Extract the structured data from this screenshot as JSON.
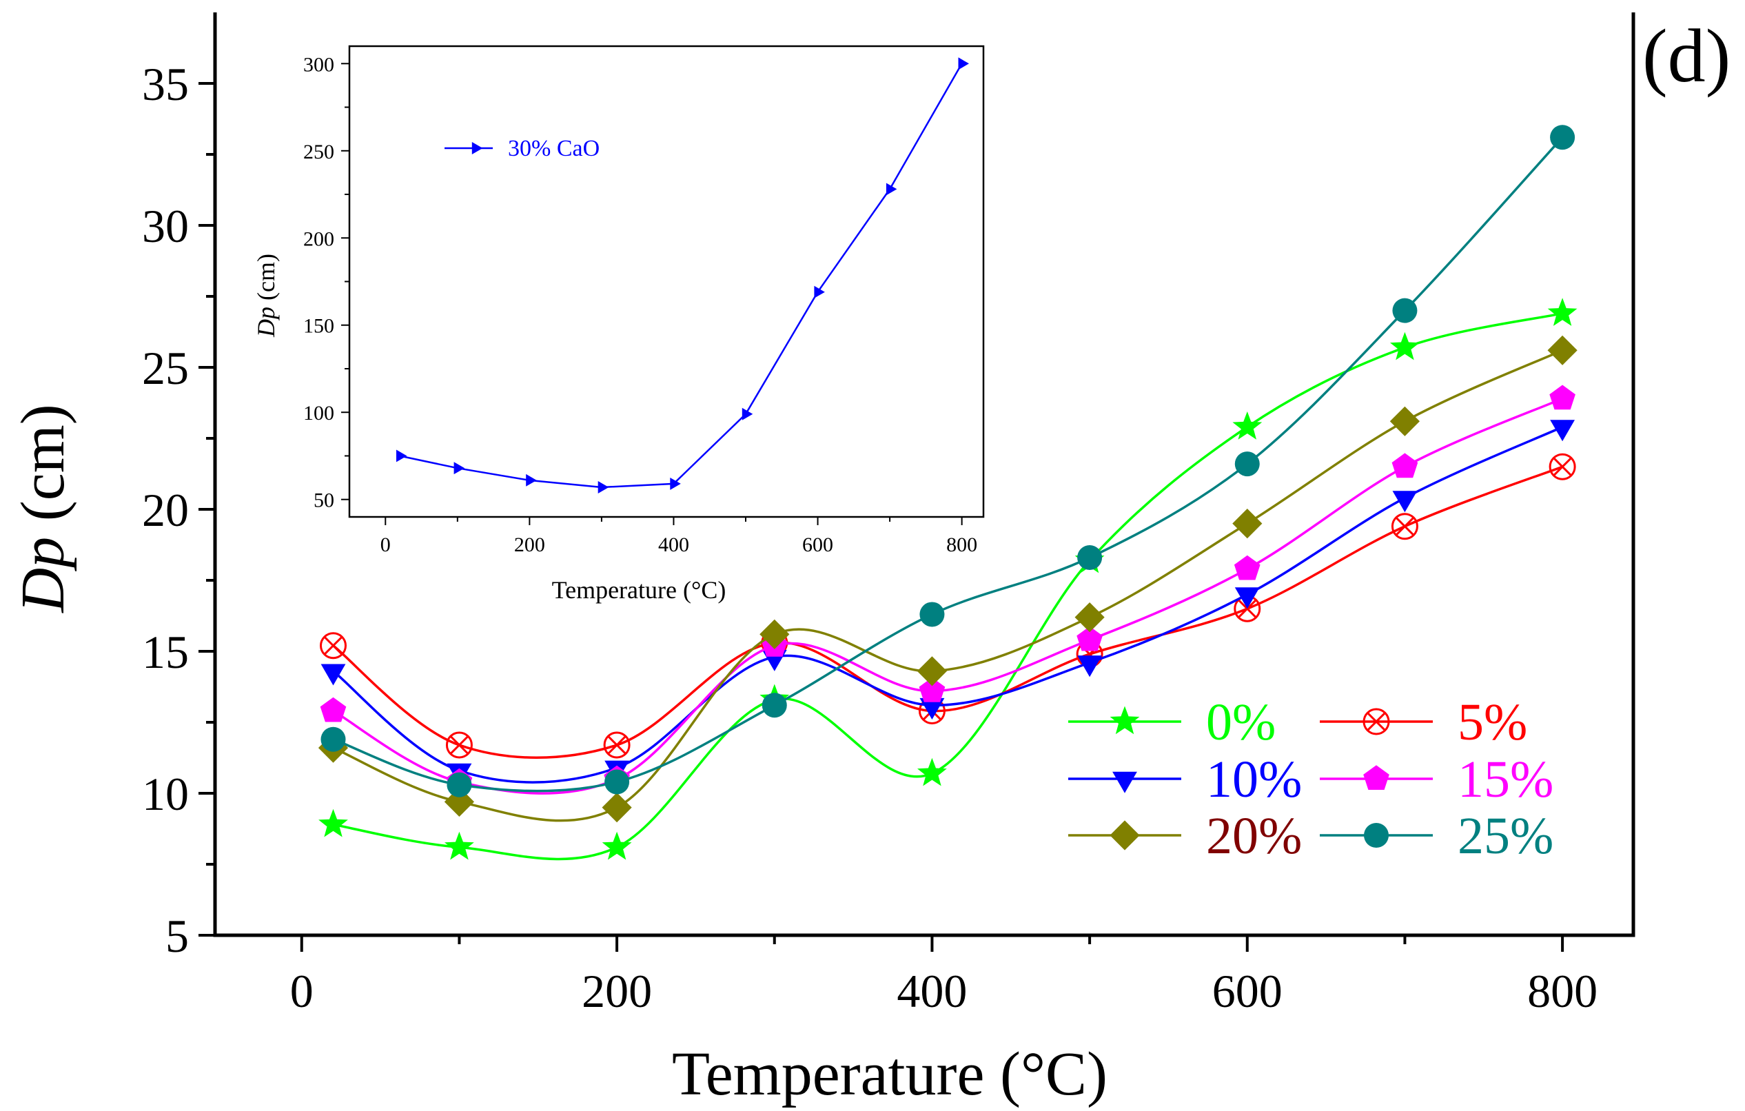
{
  "chart_data": [
    {
      "type": "line",
      "panel_label": "(d)",
      "title": "",
      "xlabel": "Temperature (°C)",
      "ylabel_italic": "Dp",
      "ylabel_rest": " (cm)",
      "xlim": [
        -55,
        845
      ],
      "ylim": [
        5,
        37.5
      ],
      "xticks": [
        0,
        200,
        400,
        600,
        800
      ],
      "yticks": [
        5,
        10,
        15,
        20,
        25,
        30,
        35
      ],
      "grid": false,
      "legend_position": "bottom-right",
      "x": [
        20,
        100,
        200,
        300,
        400,
        500,
        600,
        700,
        800
      ],
      "series": [
        {
          "name": "0%",
          "color": "#00ff00",
          "marker": "star",
          "values": [
            8.9,
            8.1,
            8.1,
            13.3,
            10.7,
            18.2,
            22.9,
            25.7,
            26.9
          ]
        },
        {
          "name": "5%",
          "color": "#ff0000",
          "label_color": "#ff0000",
          "marker": "circle-x",
          "values": [
            15.2,
            11.7,
            11.7,
            15.3,
            12.9,
            14.9,
            16.5,
            19.4,
            21.5
          ]
        },
        {
          "name": "10%",
          "color": "#0000ff",
          "marker": "triangle-down",
          "values": [
            14.3,
            10.8,
            10.9,
            14.8,
            13.1,
            14.6,
            17.0,
            20.4,
            22.9
          ]
        },
        {
          "name": "15%",
          "color": "#ff00ff",
          "marker": "pentagon",
          "values": [
            12.9,
            10.4,
            10.5,
            15.2,
            13.6,
            15.4,
            17.9,
            21.5,
            23.9
          ]
        },
        {
          "name": "20%",
          "color": "#808000",
          "label_color": "#800000",
          "marker": "diamond",
          "values": [
            11.6,
            9.7,
            9.5,
            15.6,
            14.3,
            16.2,
            19.5,
            23.1,
            25.6
          ]
        },
        {
          "name": "25%",
          "color": "#008080",
          "marker": "circle",
          "values": [
            11.9,
            10.3,
            10.4,
            13.1,
            16.3,
            18.3,
            21.6,
            27.0,
            33.1
          ]
        }
      ]
    },
    {
      "type": "line",
      "title": "",
      "xlabel": "Temperature (°C)",
      "ylabel_italic": "Dp",
      "ylabel_rest": " (cm)",
      "xlim": [
        -50,
        830
      ],
      "ylim": [
        40,
        310
      ],
      "xticks": [
        0,
        200,
        400,
        600,
        800
      ],
      "yticks": [
        50,
        100,
        150,
        200,
        250,
        300
      ],
      "grid": false,
      "legend_position": "top-left",
      "x": [
        20,
        100,
        200,
        300,
        400,
        500,
        600,
        700,
        800
      ],
      "series": [
        {
          "name": "30% CaO",
          "color": "#0000ff",
          "marker": "triangle-right",
          "values": [
            75,
            68,
            61,
            57,
            59,
            99,
            169,
            228,
            300
          ]
        }
      ]
    }
  ]
}
